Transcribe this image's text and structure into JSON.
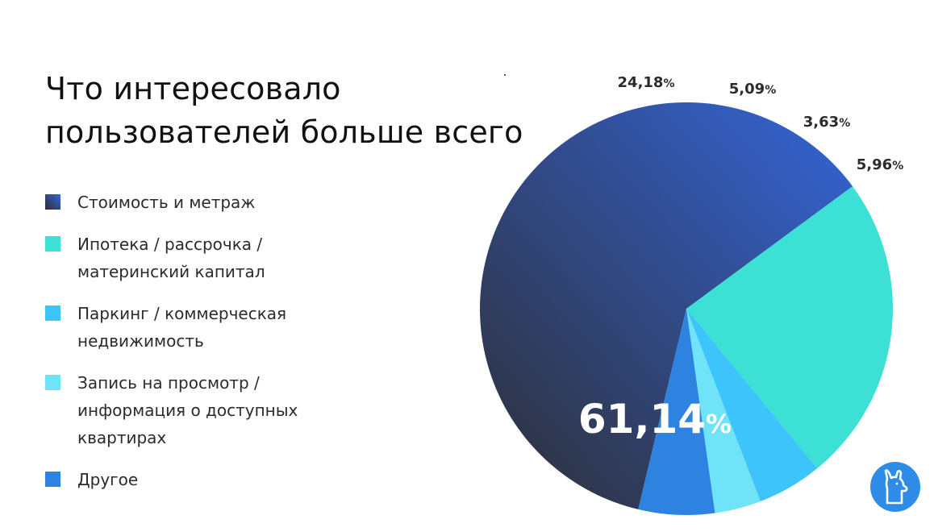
{
  "title_lines": [
    "Что интересовало",
    "пользователей больше всего"
  ],
  "legend": [
    {
      "label_lines": [
        "Стоимость и метраж"
      ],
      "color": "#2c3e63"
    },
    {
      "label_lines": [
        "Ипотека / рассрочка /",
        "материнский капитал"
      ],
      "color": "#3ce0d4"
    },
    {
      "label_lines": [
        "Паркинг / коммерческая",
        "недвижимость"
      ],
      "color": "#3cc4fb"
    },
    {
      "label_lines": [
        "Запись на просмотр /",
        "информация о доступных",
        "квартирах"
      ],
      "color": "#6fe3f7"
    },
    {
      "label_lines": [
        "Другое"
      ],
      "color": "#2f83e0"
    }
  ],
  "chart_data": {
    "type": "pie",
    "title": "Что интересовало пользователей больше всего",
    "slices": [
      {
        "label": "Стоимость и метраж",
        "value": 61.14,
        "display": "61,14",
        "color_start": "#2e2e33",
        "color_end": "#3465d8"
      },
      {
        "label": "Ипотека / рассрочка / материнский капитал",
        "value": 24.18,
        "display": "24,18",
        "color": "#3ce0d4"
      },
      {
        "label": "Паркинг / коммерческая недвижимость",
        "value": 5.09,
        "display": "5,09",
        "color": "#3cc4fb"
      },
      {
        "label": "Запись на просмотр / информация о доступных квартирах",
        "value": 3.63,
        "display": "3,63",
        "color": "#6fe3f7"
      },
      {
        "label": "Другое",
        "value": 5.96,
        "display": "5,96",
        "color": "#2f83e0"
      }
    ],
    "percent_sign": "%",
    "legend_position": "left"
  },
  "logo": {
    "icon": "llama-logo-icon",
    "color": "#2f8ce6"
  }
}
